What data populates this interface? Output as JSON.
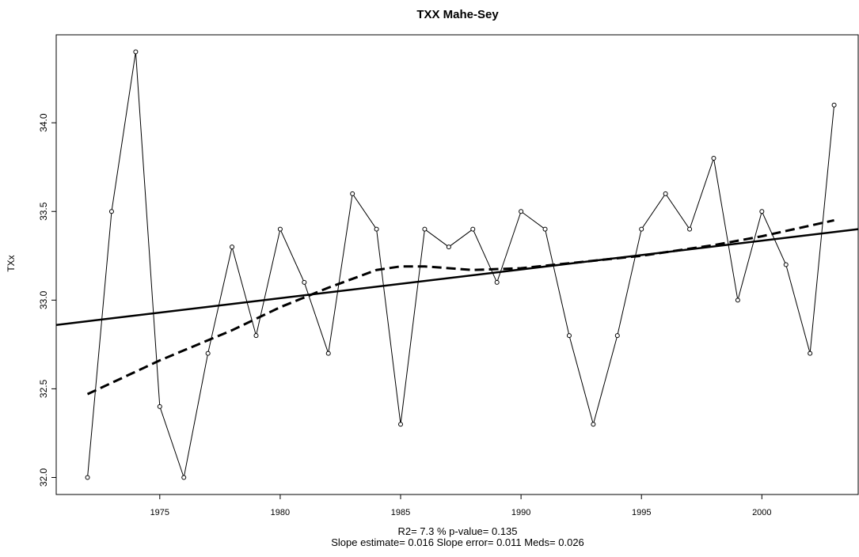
{
  "chart_data": {
    "type": "line",
    "title": "TXX   Mahe-Sey",
    "y_label": "TXx",
    "annotations": [
      "R2= 7.3 % p-value= 0.135",
      "Slope estimate= 0.016  Slope error= 0.011  Meds= 0.026"
    ],
    "x": [
      1972,
      1973,
      1974,
      1975,
      1976,
      1977,
      1978,
      1979,
      1980,
      1981,
      1982,
      1983,
      1984,
      1985,
      1986,
      1987,
      1988,
      1989,
      1990,
      1991,
      1992,
      1993,
      1994,
      1995,
      1996,
      1997,
      1998,
      1999,
      2000,
      2001,
      2002,
      2003
    ],
    "series": [
      {
        "color": "#000000",
        "line_style": "solid",
        "markers": true,
        "line_width": 1,
        "values": [
          32.0,
          33.5,
          34.4,
          32.4,
          32.0,
          32.7,
          33.3,
          32.8,
          33.4,
          33.1,
          32.7,
          33.6,
          33.4,
          32.3,
          33.4,
          33.3,
          33.4,
          33.1,
          33.5,
          33.4,
          32.8,
          32.3,
          32.8,
          33.4,
          33.6,
          33.4,
          33.8,
          33.0,
          33.5,
          33.2,
          32.7,
          34.1
        ]
      },
      {
        "color": "#000000",
        "line_style": "solid",
        "markers": false,
        "line_width": 2.5,
        "x": [
          1970.7,
          2004
        ],
        "values": [
          32.86,
          33.4
        ]
      },
      {
        "color": "#000000",
        "line_style": "dashed",
        "markers": false,
        "line_width": 3,
        "x": [
          1972,
          1975,
          1978,
          1980,
          1982,
          1984,
          1985,
          1986,
          1988,
          1990,
          1995,
          1998,
          2000,
          2003
        ],
        "values": [
          32.47,
          32.66,
          32.83,
          32.96,
          33.07,
          33.17,
          33.19,
          33.19,
          33.17,
          33.18,
          33.25,
          33.31,
          33.36,
          33.45
        ]
      }
    ],
    "xlim": [
      1970.7,
      2004
    ],
    "ylim": [
      31.904,
      34.496
    ],
    "xticks": [
      1975,
      1980,
      1985,
      1990,
      1995,
      2000
    ],
    "yticks": [
      {
        "value": 32,
        "label": "32.0"
      },
      32.5,
      {
        "value": 33,
        "label": "33.0"
      },
      33.5,
      {
        "value": 34,
        "label": "34.0"
      }
    ]
  }
}
